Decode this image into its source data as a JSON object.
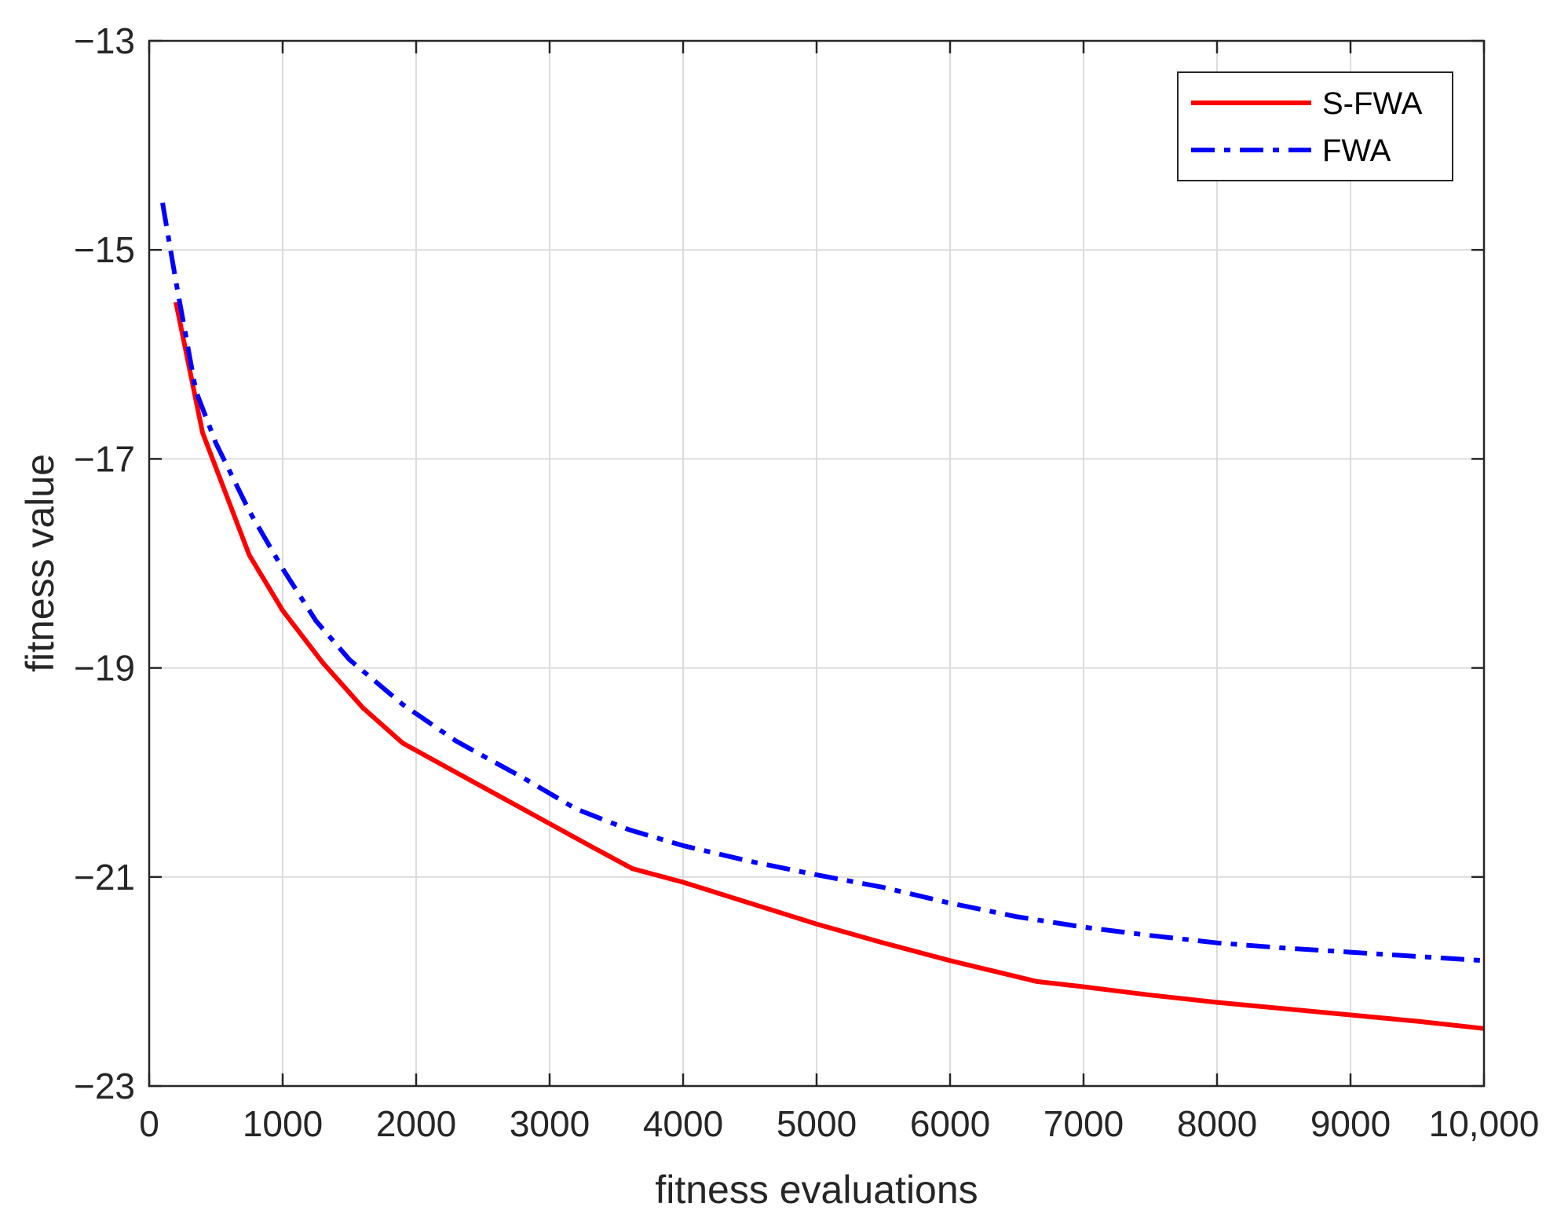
{
  "chart_data": {
    "type": "line",
    "title": "",
    "xlabel": "fitness evaluations",
    "ylabel": "fitness value",
    "xlim": [
      0,
      10000
    ],
    "ylim": [
      -23,
      -13
    ],
    "xticks": [
      0,
      1000,
      2000,
      3000,
      4000,
      5000,
      6000,
      7000,
      8000,
      9000,
      10000
    ],
    "xtick_labels": [
      "0",
      "1000",
      "2000",
      "3000",
      "4000",
      "5000",
      "6000",
      "7000",
      "8000",
      "9000",
      "10,000"
    ],
    "yticks": [
      -23,
      -21,
      -19,
      -17,
      -15,
      -13
    ],
    "ytick_labels": [
      "−23",
      "−21",
      "−19",
      "−17",
      "−15",
      "−13"
    ],
    "grid": true,
    "legend_position": "top-right",
    "series": [
      {
        "name": "S-FWA",
        "color": "#ff0000",
        "line_style": "solid",
        "x": [
          200,
          400,
          750,
          1000,
          1300,
          1600,
          1900,
          2300,
          2800,
          3300,
          3620,
          4000,
          4500,
          5000,
          5500,
          6000,
          6650,
          7000,
          7500,
          8000,
          8500,
          9000,
          9500,
          10000
        ],
        "y": [
          -15.5,
          -16.75,
          -17.92,
          -18.45,
          -18.95,
          -19.38,
          -19.72,
          -20.0,
          -20.35,
          -20.7,
          -20.92,
          -21.05,
          -21.25,
          -21.45,
          -21.63,
          -21.8,
          -22.0,
          -22.05,
          -22.13,
          -22.2,
          -22.26,
          -22.32,
          -22.38,
          -22.45
        ]
      },
      {
        "name": "FWA",
        "color": "#0000ff",
        "line_style": "dash-dot",
        "x": [
          100,
          200,
          350,
          500,
          750,
          1000,
          1250,
          1500,
          1900,
          2300,
          2800,
          3200,
          3600,
          4000,
          4500,
          5000,
          5500,
          6000,
          6500,
          7000,
          7500,
          8000,
          8500,
          9000,
          9500,
          10000
        ],
        "y": [
          -14.55,
          -15.3,
          -16.35,
          -16.85,
          -17.5,
          -18.05,
          -18.55,
          -18.92,
          -19.35,
          -19.7,
          -20.05,
          -20.35,
          -20.55,
          -20.7,
          -20.85,
          -20.98,
          -21.1,
          -21.25,
          -21.38,
          -21.48,
          -21.56,
          -21.63,
          -21.68,
          -21.72,
          -21.76,
          -21.8
        ]
      }
    ]
  }
}
